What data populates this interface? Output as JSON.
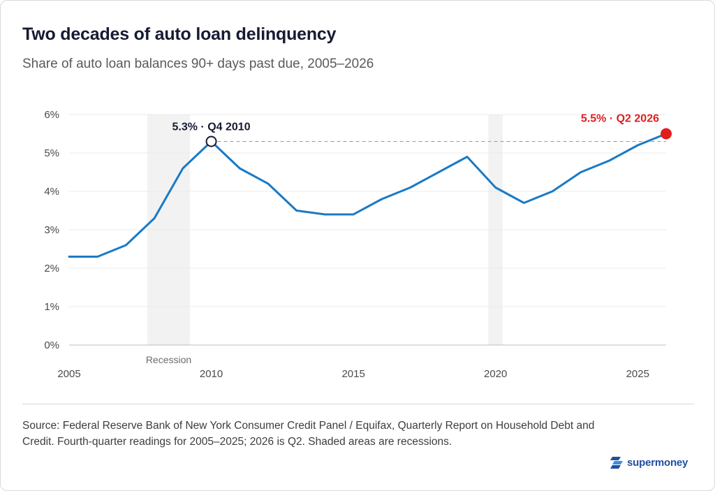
{
  "header": {
    "title": "Two decades of auto loan delinquency",
    "subtitle": "Share of auto loan balances 90+ days past due, 2005–2026"
  },
  "chart_data": {
    "type": "line",
    "x": [
      2005,
      2006,
      2007,
      2008,
      2009,
      2010,
      2011,
      2012,
      2013,
      2014,
      2015,
      2016,
      2017,
      2018,
      2019,
      2020,
      2021,
      2022,
      2023,
      2024,
      2025,
      2026
    ],
    "series": [
      {
        "values": [
          2.3,
          2.3,
          2.6,
          3.3,
          4.6,
          5.3,
          4.6,
          4.2,
          3.5,
          3.4,
          3.4,
          3.8,
          4.1,
          4.5,
          4.9,
          4.1,
          3.7,
          4.0,
          4.5,
          4.8,
          5.2,
          5.5
        ],
        "color": "#1a7ac4"
      }
    ],
    "xlim": [
      2005,
      2026
    ],
    "ylim": [
      0,
      6
    ],
    "y_ticks": [
      "0%",
      "1%",
      "2%",
      "3%",
      "4%",
      "5%",
      "6%"
    ],
    "x_ticks": [
      "2005",
      "2010",
      "2015",
      "2020",
      "2025"
    ],
    "grid": true,
    "recessions": [
      {
        "start": 2007.75,
        "end": 2009.25,
        "label": "Recession"
      },
      {
        "start": 2019.75,
        "end": 2020.25,
        "label": ""
      }
    ],
    "annotations": [
      {
        "x": 2010,
        "y": 5.3,
        "text": "5.3% · Q4 2010",
        "color": "#161b33",
        "marker": "hollow"
      },
      {
        "x": 2026,
        "y": 5.5,
        "text": "5.5% · Q2 2026",
        "color": "#e01e1e",
        "marker": "filled"
      }
    ],
    "reference_line": {
      "y": 5.3,
      "from": 2010,
      "to": 2026
    }
  },
  "footer": {
    "source": "Source: Federal Reserve Bank of New York Consumer Credit Panel / Equifax, Quarterly Report on Household Debt and Credit. Fourth-quarter readings for 2005–2025; 2026 is Q2. Shaded areas are recessions.",
    "brand": "supermoney",
    "brand_icon": "supermoney-logo-icon"
  }
}
